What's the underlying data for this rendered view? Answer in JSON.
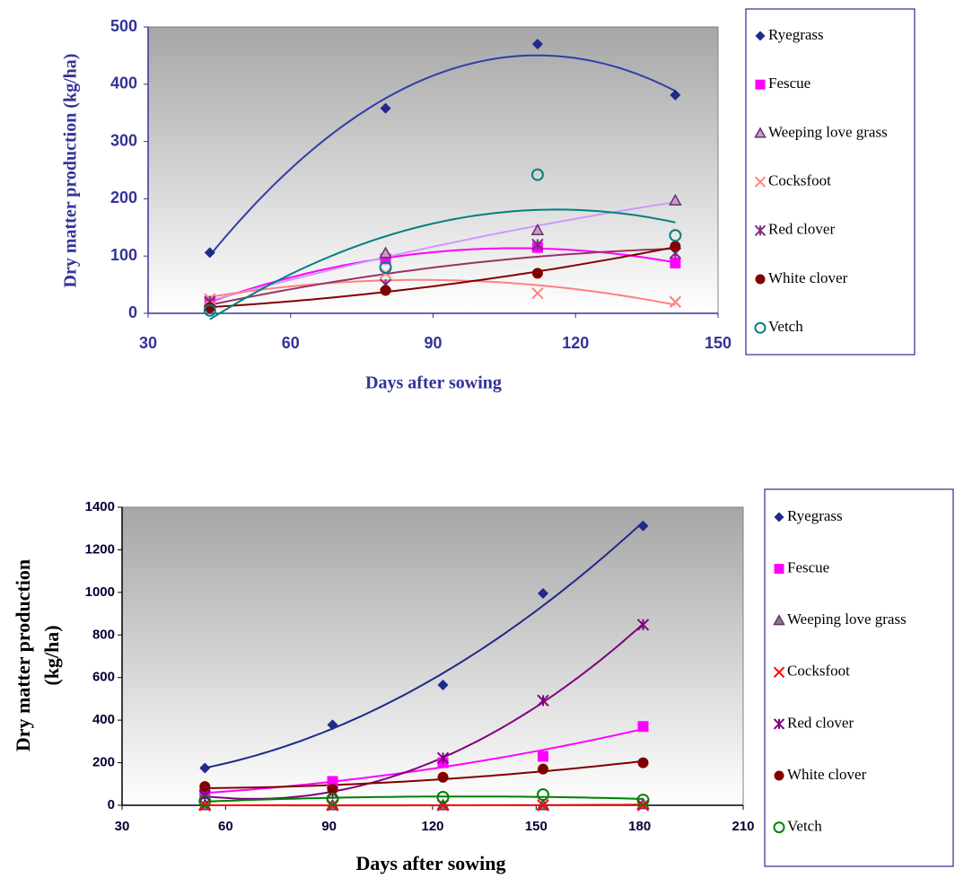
{
  "chart_data": [
    {
      "type": "scatter",
      "trendline": "polynomial",
      "x_label": "Days after sowing",
      "y_label": [
        "Dry matter production (kg/ha)"
      ],
      "x": [
        43,
        80,
        112,
        141
      ],
      "xlim": [
        30,
        150
      ],
      "xticks": [
        30,
        60,
        90,
        120,
        150
      ],
      "ylim": [
        0,
        500
      ],
      "yticks": [
        0,
        100,
        200,
        300,
        400,
        500
      ],
      "series": [
        {
          "name": "Ryegrass",
          "marker": "diamond",
          "color": "#1f2a8a",
          "trendline_color": "#2e3fa8",
          "values": [
            106,
            358,
            470,
            381
          ]
        },
        {
          "name": "Fescue",
          "marker": "square",
          "color": "#ff00ff",
          "trendline_color": "#ff00ff",
          "values": [
            20,
            95,
            115,
            88
          ]
        },
        {
          "name": "Weeping love grass",
          "marker": "triangle",
          "color": "#cc99cc",
          "trendline_color": "#cc99ff",
          "values": [
            20,
            105,
            145,
            197
          ]
        },
        {
          "name": "Cocksfoot",
          "marker": "x",
          "color": "#ff8080",
          "trendline_color": "#ff8080",
          "values": [
            25,
            70,
            35,
            20
          ]
        },
        {
          "name": "Red clover",
          "marker": "star",
          "color": "#7b2c7b",
          "trendline_color": "#993366",
          "values": [
            20,
            50,
            120,
            105
          ]
        },
        {
          "name": "White clover",
          "marker": "circle",
          "color": "#800000",
          "trendline_color": "#800000",
          "values": [
            10,
            40,
            70,
            117
          ]
        },
        {
          "name": "Vetch",
          "marker": "ocircle",
          "color": "#008080",
          "trendline_color": "#008080",
          "values": [
            5,
            80,
            242,
            136
          ]
        }
      ]
    },
    {
      "type": "scatter",
      "trendline": "polynomial",
      "x_label": "Days after sowing",
      "y_label": [
        "Dry matter production",
        "(kg/ha)"
      ],
      "x": [
        54,
        91,
        123,
        152,
        181
      ],
      "xlim": [
        30,
        210
      ],
      "xticks": [
        30,
        60,
        90,
        120,
        150,
        180,
        210
      ],
      "ylim": [
        0,
        1400
      ],
      "yticks": [
        0,
        200,
        400,
        600,
        800,
        1000,
        1200,
        1400
      ],
      "series": [
        {
          "name": "Ryegrass",
          "marker": "diamond",
          "color": "#1f2a8a",
          "trendline_color": "#1f2a8a",
          "values": [
            175,
            378,
            565,
            995,
            1312
          ]
        },
        {
          "name": "Fescue",
          "marker": "square",
          "color": "#ff00ff",
          "trendline_color": "#ff00ff",
          "values": [
            55,
            112,
            200,
            230,
            370
          ]
        },
        {
          "name": "Weeping love grass",
          "marker": "triangle",
          "color": "#808080",
          "trendline_color": "#808080",
          "values": [
            0,
            0,
            0,
            0,
            5
          ]
        },
        {
          "name": "Cocksfoot",
          "marker": "x",
          "color": "#ff0000",
          "trendline_color": "#ff0000",
          "values": [
            0,
            0,
            0,
            0,
            0
          ]
        },
        {
          "name": "Red clover",
          "marker": "star",
          "color": "#800080",
          "trendline_color": "#800080",
          "values": [
            45,
            60,
            222,
            492,
            848
          ]
        },
        {
          "name": "White clover",
          "marker": "circle",
          "color": "#800000",
          "trendline_color": "#800000",
          "values": [
            88,
            75,
            132,
            170,
            200
          ]
        },
        {
          "name": "Vetch",
          "marker": "ocircle",
          "color": "#008000",
          "trendline_color": "#008000",
          "values": [
            20,
            30,
            38,
            50,
            25
          ]
        }
      ]
    }
  ]
}
